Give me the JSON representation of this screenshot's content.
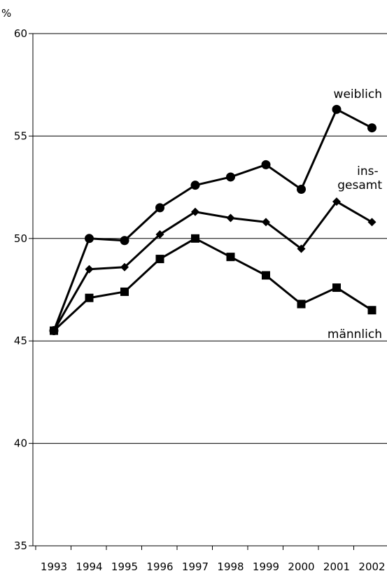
{
  "chart_data": {
    "type": "line",
    "categories": [
      "1993",
      "1994",
      "1995",
      "1996",
      "1997",
      "1998",
      "1999",
      "2000",
      "2001",
      "2002"
    ],
    "y_unit": "%",
    "ylim": [
      35,
      60
    ],
    "yticks": [
      35,
      40,
      45,
      50,
      55,
      60
    ],
    "grid": true,
    "series": [
      {
        "name": "weiblich",
        "marker": "circle",
        "values": [
          45.5,
          50.0,
          49.9,
          51.5,
          52.6,
          53.0,
          53.6,
          52.4,
          56.3,
          55.4
        ]
      },
      {
        "name": "ins-\ngesamt",
        "marker": "diamond",
        "values": [
          45.5,
          48.5,
          48.6,
          50.2,
          51.3,
          51.0,
          50.8,
          49.5,
          51.8,
          50.8
        ]
      },
      {
        "name": "männlich",
        "marker": "square",
        "values": [
          45.5,
          47.1,
          47.4,
          49.0,
          50.0,
          49.1,
          48.2,
          46.8,
          47.6,
          46.5
        ]
      }
    ]
  }
}
